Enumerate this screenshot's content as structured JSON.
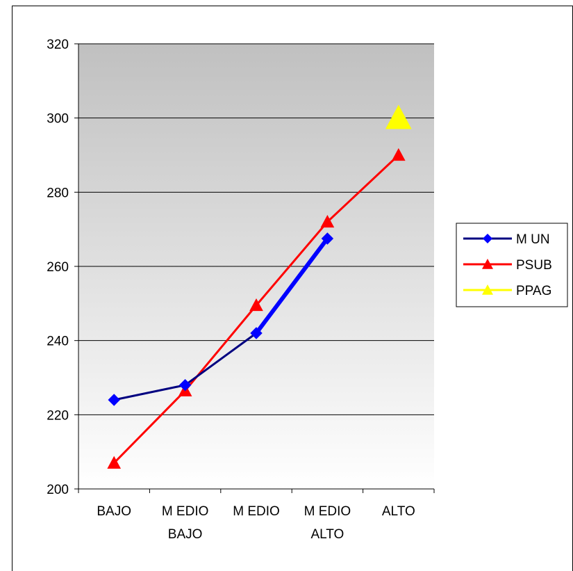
{
  "chart_data": {
    "type": "line",
    "categories": [
      [
        "BAJO"
      ],
      [
        "M EDIO",
        "BAJO"
      ],
      [
        "M EDIO"
      ],
      [
        "M EDIO",
        "ALTO"
      ],
      [
        "ALTO"
      ]
    ],
    "ylim": [
      200,
      320
    ],
    "yticks": [
      200,
      220,
      240,
      260,
      280,
      300,
      320
    ],
    "grid": true,
    "legend_position": "right",
    "series": [
      {
        "name": "M UN",
        "color": "#000080",
        "marker": "diamond",
        "values": [
          224,
          228,
          242,
          267.5,
          null
        ]
      },
      {
        "name": "PSUB",
        "color": "#ff0000",
        "marker": "triangle",
        "values": [
          207,
          226.5,
          249.5,
          272,
          290
        ]
      },
      {
        "name": "PPAG",
        "color": "#ffff00",
        "marker": "triangle",
        "values": [
          null,
          null,
          null,
          null,
          300
        ]
      }
    ],
    "highlight_color": "#0000ff",
    "plot_background": [
      "#c0c0c0",
      "#ffffff"
    ]
  }
}
